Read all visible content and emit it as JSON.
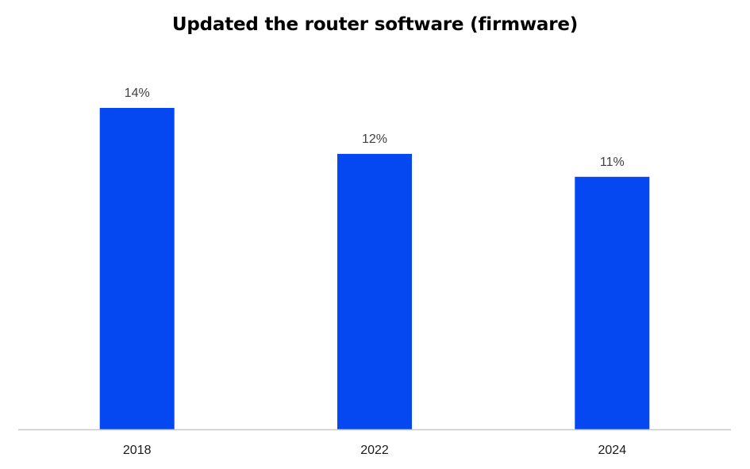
{
  "chart_data": {
    "type": "bar",
    "title": "Updated the router software (firmware)",
    "categories": [
      "2018",
      "2022",
      "2024"
    ],
    "series": [
      {
        "values": [
          14,
          12,
          11
        ]
      }
    ],
    "value_labels": [
      "14%",
      "12%",
      "11%"
    ],
    "unit": "%",
    "ylim": [
      0,
      14
    ],
    "xlabel": "",
    "ylabel": "",
    "grid": false,
    "legend": "none",
    "bar_color": "#0547F0",
    "axis_color": "#C8C8C8"
  }
}
